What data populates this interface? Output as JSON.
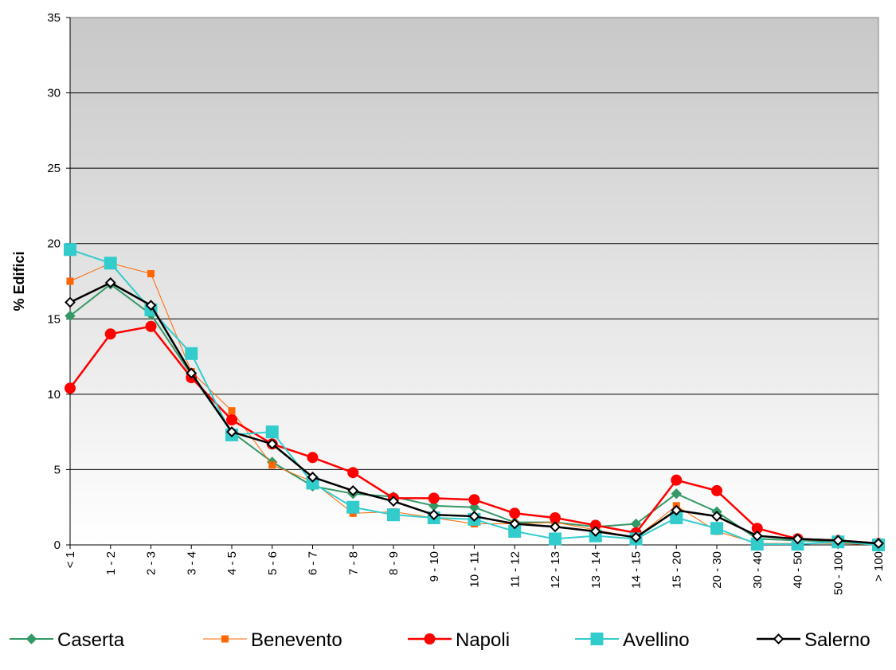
{
  "chart_data": {
    "type": "line",
    "title": "",
    "xlabel": "",
    "ylabel": "% Edifici",
    "ylim": [
      0,
      35
    ],
    "yticks": [
      0,
      5,
      10,
      15,
      20,
      25,
      30,
      35
    ],
    "grid": true,
    "legend_position": "bottom",
    "categories": [
      "< 1",
      "1 - 2",
      "2 - 3",
      "3 - 4",
      "4 - 5",
      "5 - 6",
      "6 - 7",
      "7 - 8",
      "8 - 9",
      "9 - 10",
      "10 - 11",
      "11 - 12",
      "12 - 13",
      "13 - 14",
      "14 - 15",
      "15 - 20",
      "20 - 30",
      "30 - 40",
      "40 - 50",
      "50 - 100",
      "> 100"
    ],
    "series": [
      {
        "name": "Caserta",
        "color": "#339966",
        "marker": "diamond",
        "values": [
          15.2,
          17.3,
          15.3,
          11.3,
          7.5,
          5.5,
          3.9,
          3.4,
          3.2,
          2.6,
          2.5,
          1.5,
          1.5,
          1.2,
          1.4,
          3.4,
          2.2,
          0.4,
          0.3,
          0.2,
          0.1
        ]
      },
      {
        "name": "Benevento",
        "color": "#ff6600",
        "marker": "square-small",
        "values": [
          17.5,
          18.7,
          18.0,
          11.5,
          8.9,
          5.3,
          4.2,
          2.1,
          2.2,
          1.8,
          1.4,
          1.4,
          1.5,
          1.0,
          0.5,
          2.6,
          0.9,
          0.1,
          0.1,
          0.1,
          0.0
        ]
      },
      {
        "name": "Napoli",
        "color": "#ff0000",
        "marker": "circle",
        "values": [
          10.4,
          14.0,
          14.5,
          11.1,
          8.3,
          6.7,
          5.8,
          4.8,
          3.1,
          3.1,
          3.0,
          2.1,
          1.8,
          1.3,
          0.8,
          4.3,
          3.6,
          1.1,
          0.4,
          0.3,
          0.1
        ]
      },
      {
        "name": "Avellino",
        "color": "#33cccc",
        "marker": "square",
        "values": [
          19.6,
          18.7,
          15.6,
          12.7,
          7.3,
          7.5,
          4.1,
          2.5,
          2.0,
          1.8,
          1.7,
          0.9,
          0.4,
          0.6,
          0.4,
          1.8,
          1.1,
          0.05,
          0.05,
          0.2,
          0.0
        ]
      },
      {
        "name": "Salerno",
        "color": "#000000",
        "marker": "diamond-open",
        "values": [
          16.1,
          17.4,
          15.9,
          11.4,
          7.5,
          6.7,
          4.5,
          3.6,
          2.9,
          2.0,
          1.9,
          1.4,
          1.2,
          0.9,
          0.5,
          2.3,
          1.9,
          0.6,
          0.4,
          0.3,
          0.1
        ]
      }
    ]
  }
}
